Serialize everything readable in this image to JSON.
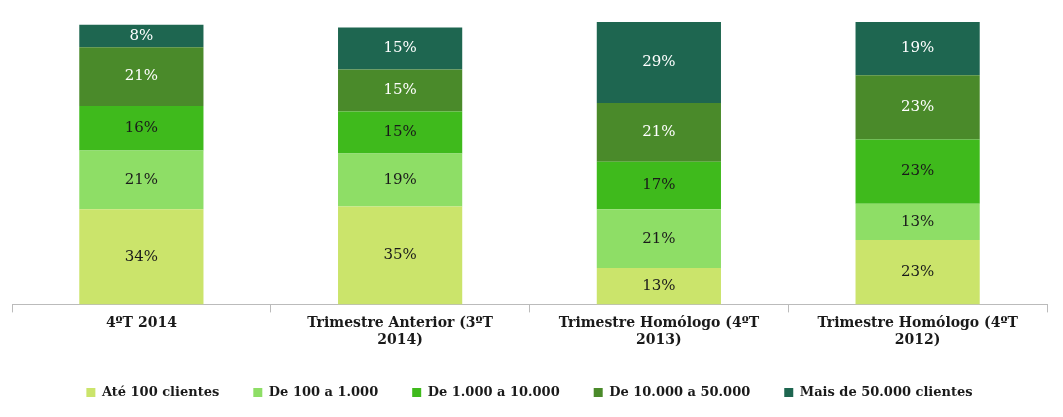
{
  "chart_data": {
    "type": "bar",
    "stacked": true,
    "legend": "bottom",
    "grid": false,
    "categories": [
      "4ºT 2014",
      "Trimestre Anterior (3ºT 2014)",
      "Trimestre Homólogo (4ºT 2013)",
      "Trimestre Homólogo (4ºT 2012)"
    ],
    "series": [
      {
        "name": "Até 100 clientes",
        "color": "#cbe46b",
        "values": [
          34,
          35,
          13,
          23
        ],
        "value_labels": [
          "34%",
          "35%",
          "13%",
          "23%"
        ]
      },
      {
        "name": "De 100 a 1.000",
        "color": "#8ede66",
        "values": [
          21,
          19,
          21,
          13
        ],
        "value_labels": [
          "21%",
          "19%",
          "21%",
          "13%"
        ]
      },
      {
        "name": "De 1.000 a 10.000",
        "color": "#3fba1c",
        "values": [
          16,
          15,
          17,
          23
        ],
        "value_labels": [
          "16%",
          "15%",
          "17%",
          "23%"
        ]
      },
      {
        "name": "De 10.000 a 50.000",
        "color": "#4a8a2a",
        "values": [
          21,
          15,
          21,
          23
        ],
        "value_labels": [
          "21%",
          "15%",
          "21%",
          "23%"
        ]
      },
      {
        "name": "Mais de 50.000 clientes",
        "color": "#1e6650",
        "values": [
          8,
          15,
          29,
          19
        ],
        "value_labels": [
          "8%",
          "15%",
          "29%",
          "19%"
        ]
      }
    ]
  }
}
